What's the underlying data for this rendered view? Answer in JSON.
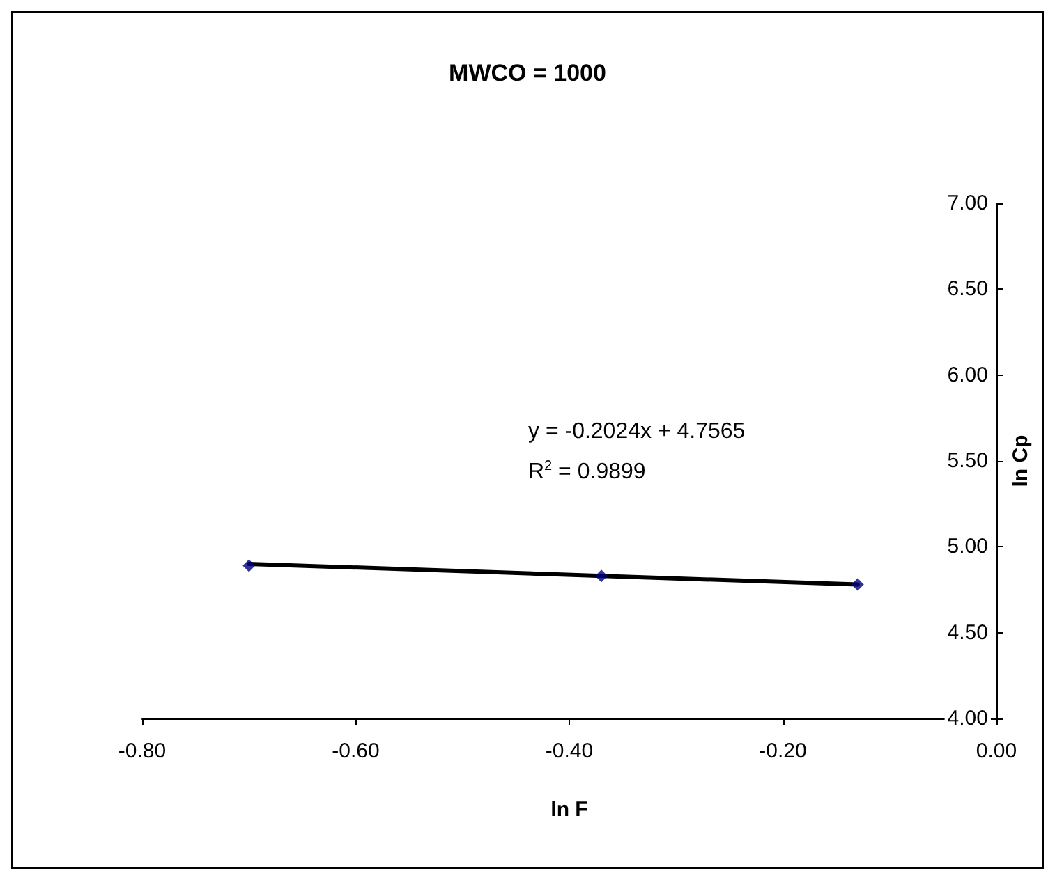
{
  "chart_data": {
    "type": "scatter",
    "title": "MWCO = 1000",
    "xlabel": "ln F",
    "ylabel": "ln Cp",
    "annotations": [
      "y = -0.2024x + 4.7565",
      "R$^{2}$ = 0.9899"
    ],
    "series": [
      {
        "color": "#000080",
        "x": [
          -0.7,
          -0.37,
          -0.13
        ],
        "values": [
          4.89,
          4.83,
          4.78
        ]
      },
      {
        "type": "line",
        "color": "#000000",
        "marker": "none",
        "x": [
          -0.7,
          -0.13
        ],
        "values": [
          4.9,
          4.78
        ]
      }
    ],
    "xlim": [
      -0.8,
      0
    ],
    "ylim": [
      4,
      7
    ],
    "xticks": [
      {
        "value": -0.8,
        "label": "-0.80"
      },
      {
        "value": -0.6,
        "label": "-0.60"
      },
      {
        "value": -0.4,
        "label": "-0.40"
      },
      {
        "value": -0.2,
        "label": "-0.20"
      },
      {
        "value": 0,
        "label": "0.00"
      }
    ],
    "yticks": [
      {
        "value": 4,
        "label": "4.00"
      },
      {
        "value": 4.5,
        "label": "4.50"
      },
      {
        "value": 5,
        "label": "5.00"
      },
      {
        "value": 5.5,
        "label": "5.50"
      },
      {
        "value": 6,
        "label": "6.00"
      },
      {
        "value": 6.5,
        "label": "6.50"
      },
      {
        "value": 7,
        "label": "7.00"
      }
    ],
    "grid": false,
    "marker": "diamond",
    "line_style": "solid"
  }
}
